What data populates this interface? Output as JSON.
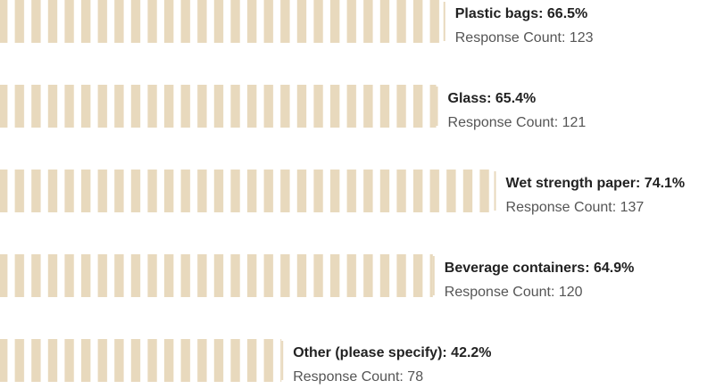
{
  "chart_data": {
    "type": "bar",
    "values": [
      66.5,
      65.4,
      74.1,
      64.9,
      42.2
    ],
    "value_labels": [
      "Plastic bags: 66.5%",
      "Glass: 65.4%",
      "Wet strength paper: 74.1%",
      "Beverage containers: 64.9%",
      "Other (please specify): 42.2%"
    ],
    "counts": [
      123,
      121,
      137,
      120,
      78
    ],
    "count_labels": [
      "Response Count: 123",
      "Response Count: 121",
      "Response Count: 137",
      "Response Count: 120",
      "Response Count: 78"
    ],
    "color": "#e8d9bd"
  }
}
